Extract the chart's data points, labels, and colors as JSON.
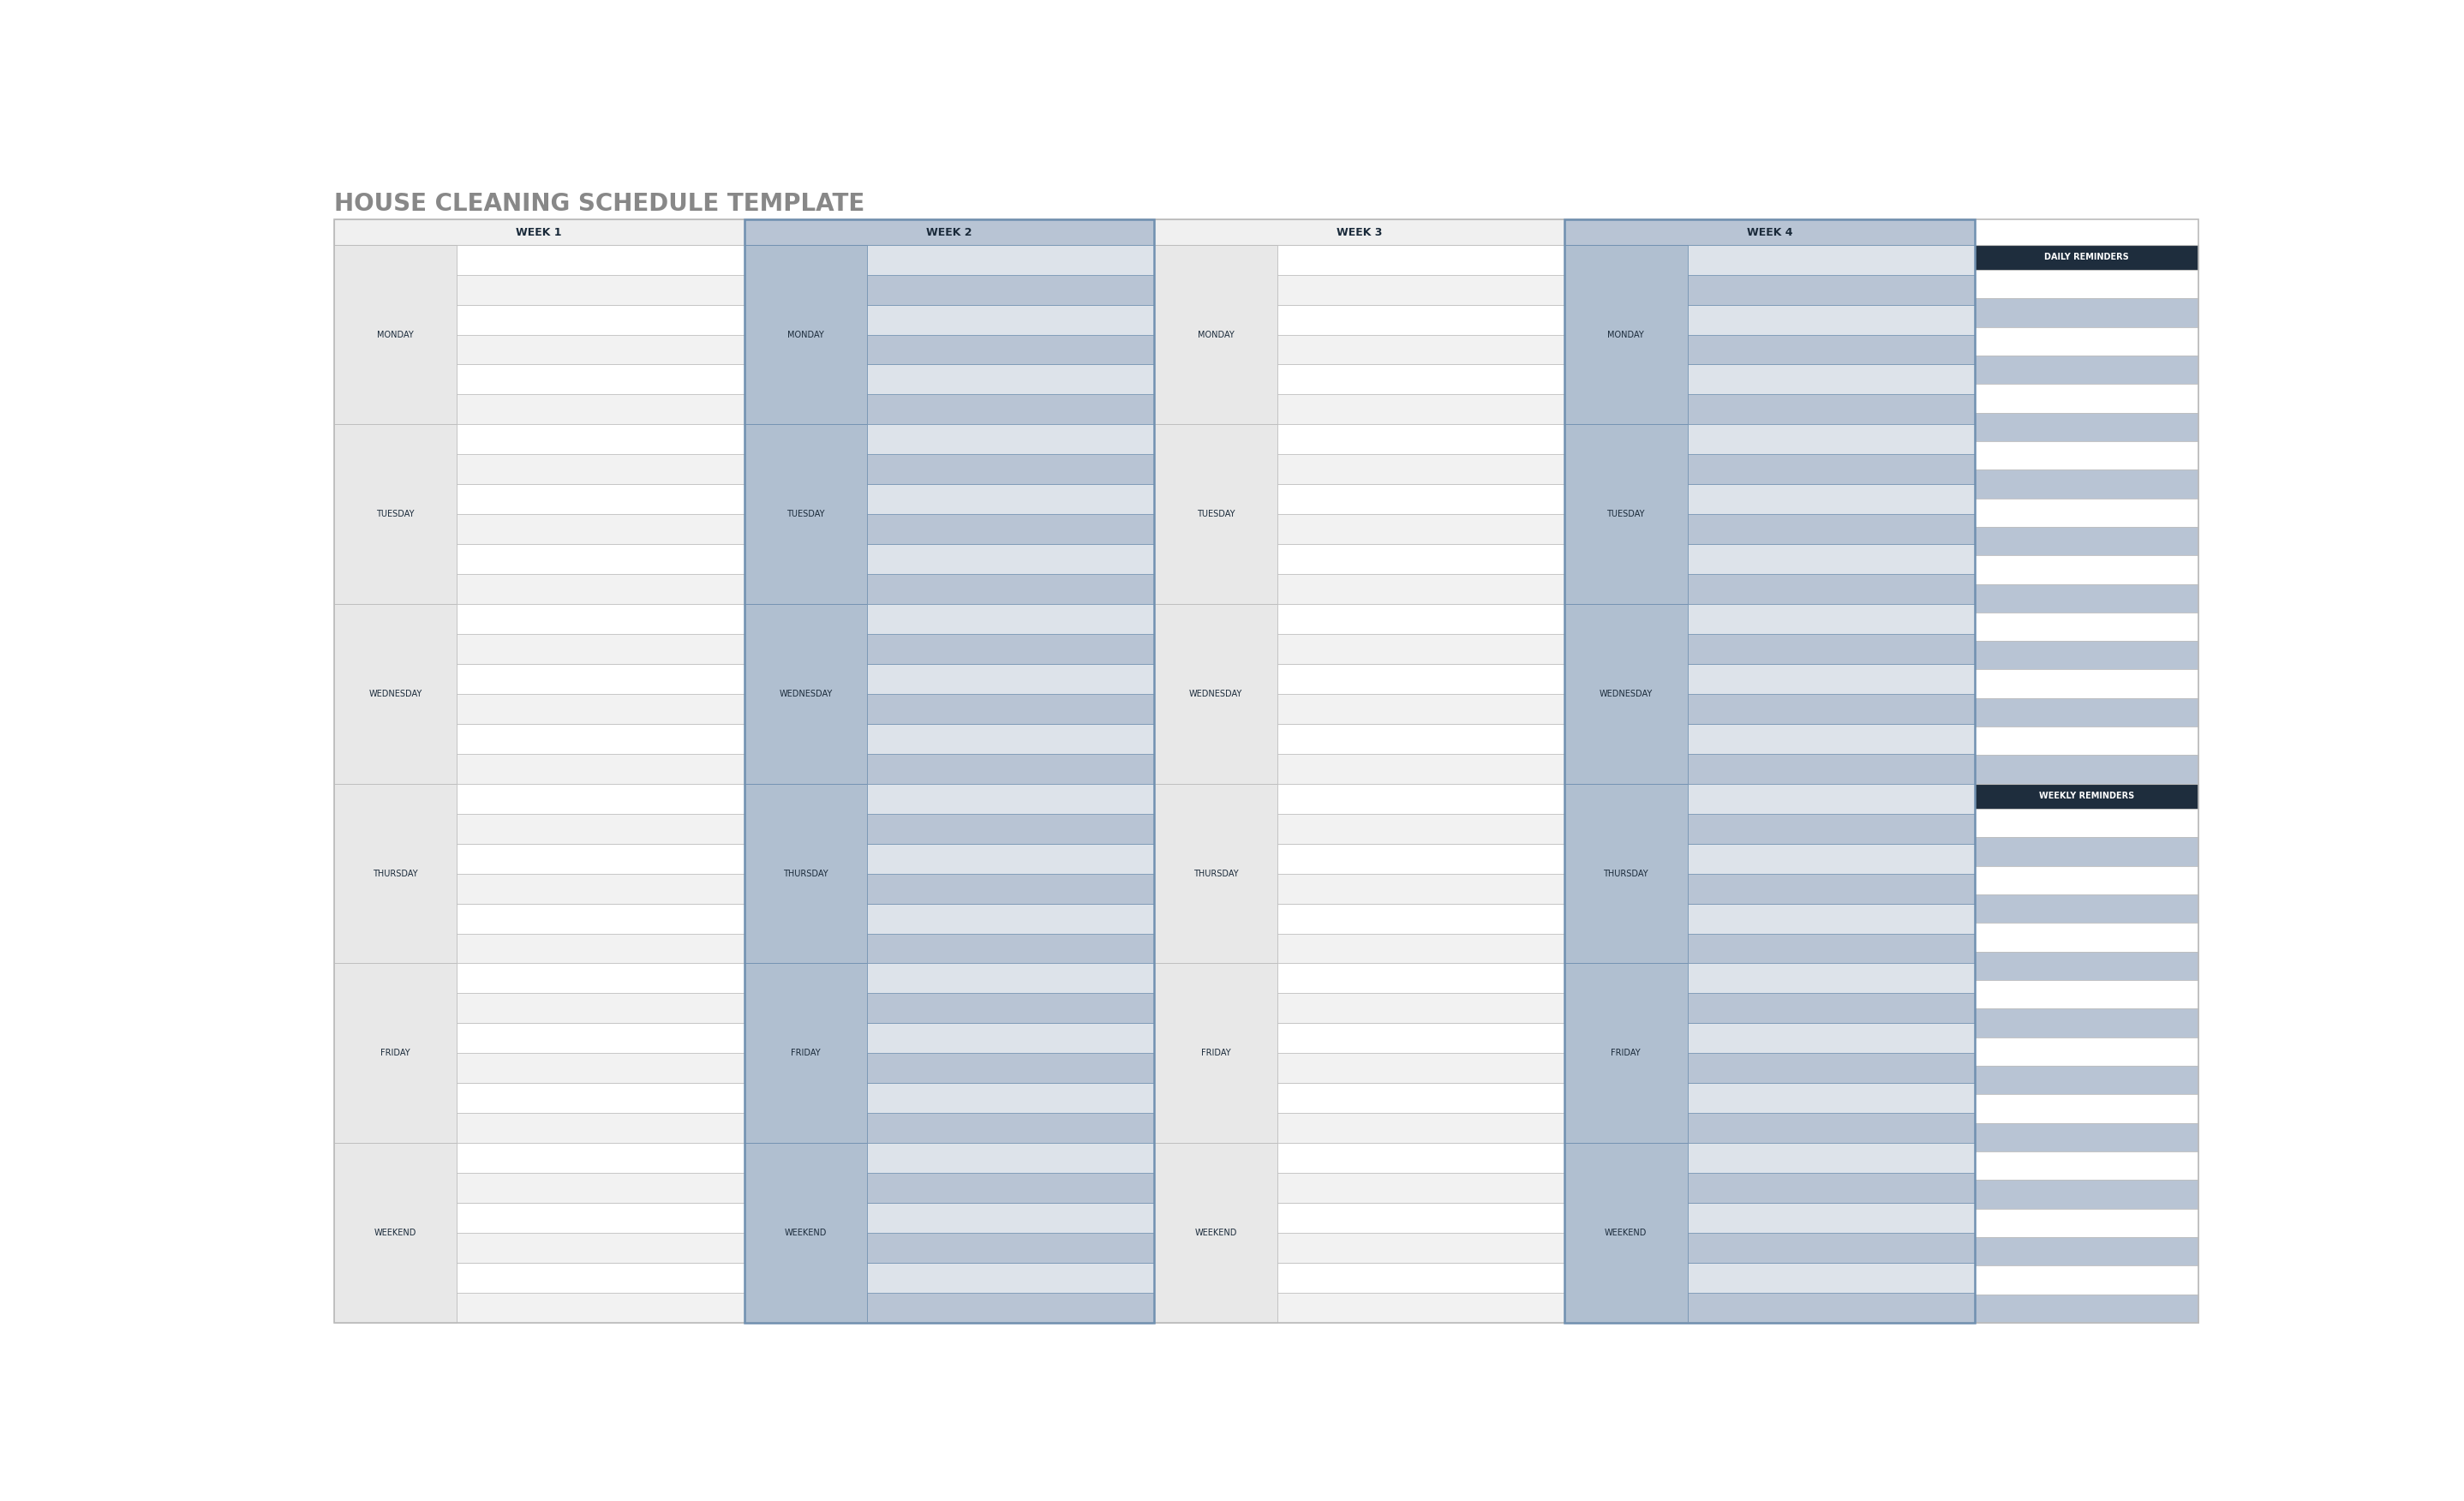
{
  "title": "HOUSE CLEANING SCHEDULE TEMPLATE",
  "title_color": "#888888",
  "title_fontsize": 20,
  "week_labels": [
    "WEEK 1",
    "WEEK 2",
    "WEEK 3",
    "WEEK 4"
  ],
  "week_header_bg_odd": "#f0f0f0",
  "week_header_bg_even": "#b8c4d4",
  "week_label_color": "#1a2a3a",
  "week_label_fontsize": 9,
  "days": [
    "MONDAY",
    "TUESDAY",
    "WEDNESDAY",
    "THURSDAY",
    "FRIDAY",
    "WEEKEND"
  ],
  "day_label_color": "#1a2a3a",
  "day_label_fontsize": 7,
  "rows_per_day": 6,
  "row_colors_odd_week": [
    "#f2f2f2",
    "#ffffff",
    "#f2f2f2",
    "#ffffff",
    "#f2f2f2",
    "#ffffff"
  ],
  "row_colors_even_week": [
    "#b8c4d4",
    "#dde3ea",
    "#b8c4d4",
    "#dde3ea",
    "#b8c4d4",
    "#dde3ea"
  ],
  "day_label_bg_odd": "#e8e8e8",
  "day_label_bg_even": "#b0bfd0",
  "reminder_header_color": "#1e2d3d",
  "reminder_header_text_color": "#ffffff",
  "reminder_header_fontsize": 7,
  "reminder_row_colors": [
    "#ffffff",
    "#b8c4d4",
    "#ffffff",
    "#b8c4d4",
    "#ffffff",
    "#b8c4d4"
  ],
  "daily_reminders_label": "DAILY REMINDERS",
  "weekly_reminders_label": "WEEKLY REMINDERS",
  "border_color": "#bbbbbb",
  "even_week_border_color": "#7090b0",
  "bg_color": "#ffffff",
  "n_daily_rows": 18,
  "n_weekly_rows": 18,
  "weekly_split_day": 3
}
